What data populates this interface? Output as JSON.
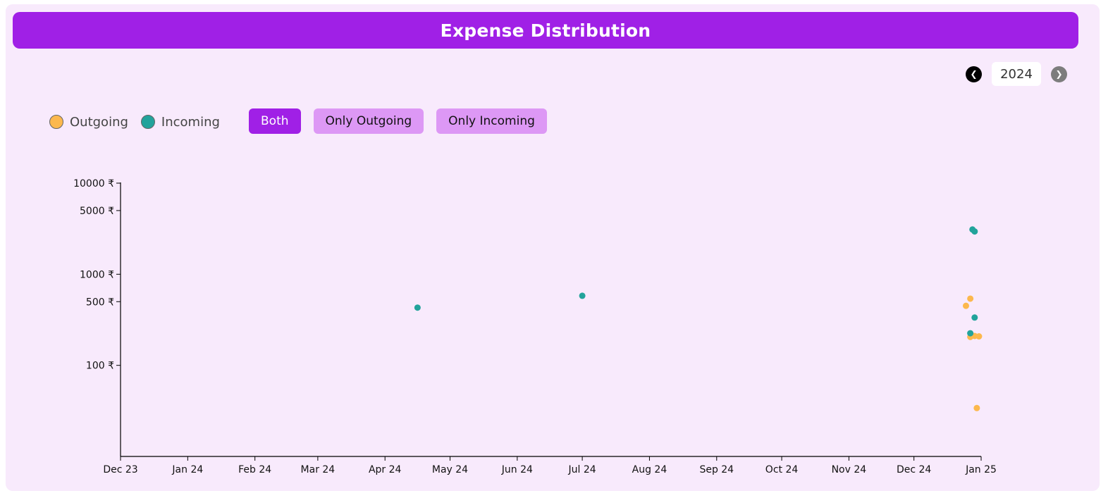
{
  "header": {
    "title": "Expense Distribution"
  },
  "year_nav": {
    "prev_icon": "chevron-left-icon",
    "next_icon": "chevron-right-icon",
    "year": "2024"
  },
  "legend": [
    {
      "label": "Outgoing",
      "color": "#fcb84d"
    },
    {
      "label": "Incoming",
      "color": "#22a39b"
    }
  ],
  "filters": [
    {
      "label": "Both",
      "active": true
    },
    {
      "label": "Only Outgoing",
      "active": false
    },
    {
      "label": "Only Incoming",
      "active": false
    }
  ],
  "chart_data": {
    "type": "scatter",
    "title": "",
    "xlabel": "",
    "ylabel": "",
    "y_scale": "log",
    "y_ticks": [
      {
        "value": 100,
        "label": "100 ₹"
      },
      {
        "value": 500,
        "label": "500 ₹"
      },
      {
        "value": 1000,
        "label": "1000 ₹"
      },
      {
        "value": 5000,
        "label": "5000 ₹"
      },
      {
        "value": 10000,
        "label": "10000 ₹"
      }
    ],
    "ylim": [
      10,
      10000
    ],
    "xlim": [
      "2023-12-01",
      "2025-01-01"
    ],
    "x_ticks": [
      {
        "date": "2023-12-01",
        "label": "Dec 23"
      },
      {
        "date": "2024-01-01",
        "label": "Jan 24"
      },
      {
        "date": "2024-02-01",
        "label": "Feb 24"
      },
      {
        "date": "2024-03-01",
        "label": "Mar 24"
      },
      {
        "date": "2024-04-01",
        "label": "Apr 24"
      },
      {
        "date": "2024-05-01",
        "label": "May 24"
      },
      {
        "date": "2024-06-01",
        "label": "Jun 24"
      },
      {
        "date": "2024-07-01",
        "label": "Jul 24"
      },
      {
        "date": "2024-08-01",
        "label": "Aug 24"
      },
      {
        "date": "2024-09-01",
        "label": "Sep 24"
      },
      {
        "date": "2024-10-01",
        "label": "Oct 24"
      },
      {
        "date": "2024-11-01",
        "label": "Nov 24"
      },
      {
        "date": "2024-12-01",
        "label": "Dec 24"
      },
      {
        "date": "2025-01-01",
        "label": "Jan 25"
      }
    ],
    "series": [
      {
        "name": "Outgoing",
        "color": "#fcb84d",
        "points": [
          {
            "x": "2024-12-25",
            "y": 450
          },
          {
            "x": "2024-12-27",
            "y": 540
          },
          {
            "x": "2024-12-27",
            "y": 205
          },
          {
            "x": "2024-12-29",
            "y": 210
          },
          {
            "x": "2024-12-31",
            "y": 208
          },
          {
            "x": "2024-12-30",
            "y": 34
          }
        ]
      },
      {
        "name": "Incoming",
        "color": "#22a39b",
        "points": [
          {
            "x": "2024-04-16",
            "y": 430
          },
          {
            "x": "2024-07-01",
            "y": 580
          },
          {
            "x": "2024-12-28",
            "y": 3100
          },
          {
            "x": "2024-12-29",
            "y": 2950
          },
          {
            "x": "2024-12-29",
            "y": 335
          },
          {
            "x": "2024-12-27",
            "y": 225
          }
        ]
      }
    ]
  }
}
